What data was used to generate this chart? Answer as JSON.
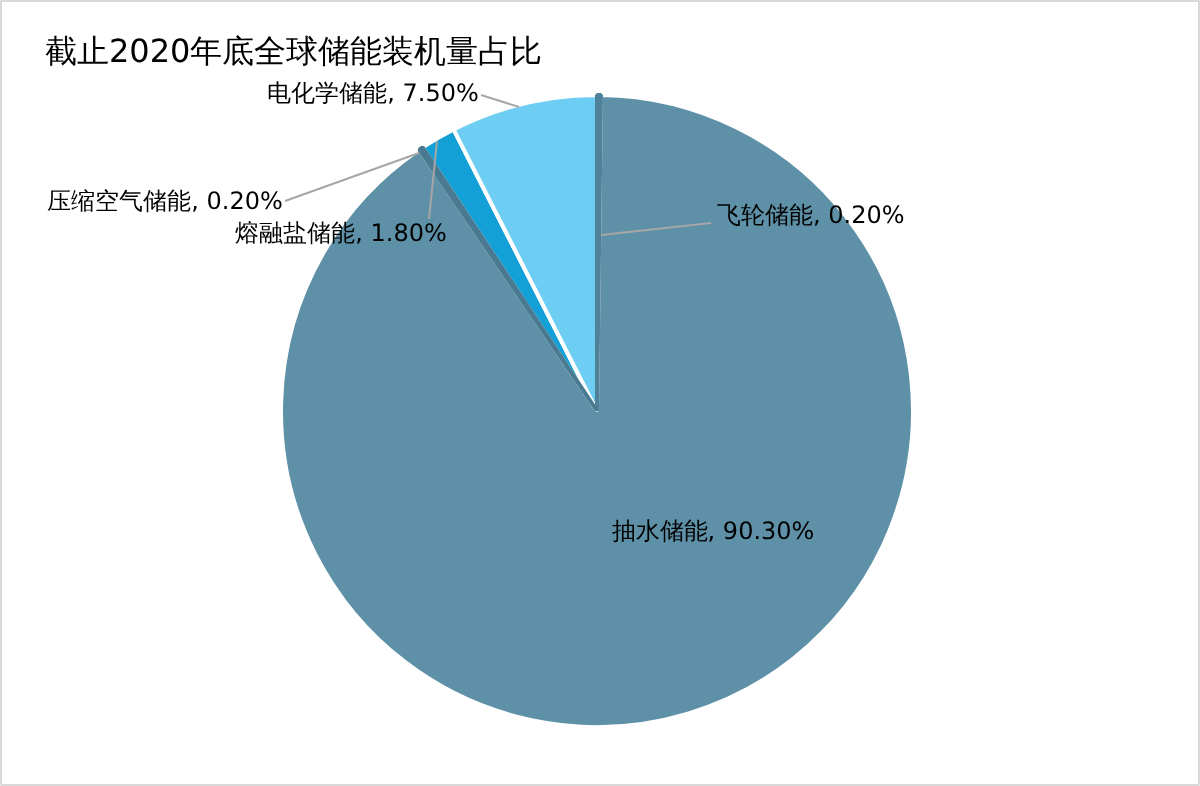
{
  "chart_data": {
    "type": "pie",
    "title": "截止2020年底全球储能装机量占比",
    "categories": [
      "飞轮储能",
      "抽水储能",
      "压缩空气储能",
      "熔融盐储能",
      "电化学储能"
    ],
    "values": [
      0.2,
      90.3,
      0.2,
      1.8,
      7.5
    ],
    "value_labels": [
      "0.20%",
      "90.30%",
      "0.20%",
      "1.80%",
      "7.50%"
    ],
    "colors": [
      "#4f8199",
      "#5e91a8",
      "#4a7a91",
      "#12a0d6",
      "#6dcdf3"
    ]
  }
}
